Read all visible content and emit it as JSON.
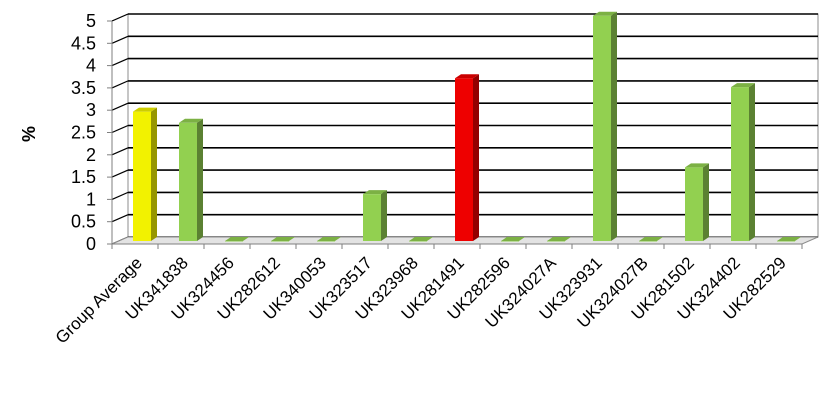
{
  "chart_data": {
    "type": "bar",
    "title": "",
    "xlabel": "",
    "ylabel": "%",
    "ylim": [
      0,
      5
    ],
    "yticks": [
      "0",
      "0.5",
      "1",
      "1.5",
      "2",
      "2.5",
      "3",
      "3.5",
      "4",
      "4.5",
      "5"
    ],
    "grid": true,
    "categories": [
      "Group Average",
      "UK341838",
      "UK324456",
      "UK282612",
      "UK340053",
      "UK323517",
      "UK323968",
      "UK281491",
      "UK282596",
      "UK324027A",
      "UK323931",
      "UK324027B",
      "UK281502",
      "UK324402",
      "UK282529"
    ],
    "values": [
      2.9,
      2.65,
      0,
      0,
      0,
      1.05,
      0,
      3.65,
      0,
      0,
      5.05,
      0,
      1.65,
      3.45,
      0
    ],
    "bar_colors": [
      "#f2f200",
      "#92d050",
      "#92d050",
      "#92d050",
      "#92d050",
      "#92d050",
      "#92d050",
      "#ee0000",
      "#92d050",
      "#92d050",
      "#92d050",
      "#92d050",
      "#92d050",
      "#92d050",
      "#92d050"
    ]
  }
}
